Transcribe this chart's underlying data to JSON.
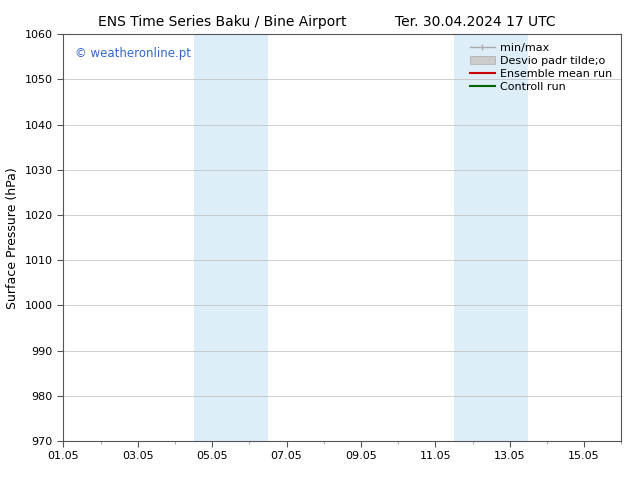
{
  "title_left": "ENS Time Series Baku / Bine Airport",
  "title_right": "Ter. 30.04.2024 17 UTC",
  "ylabel": "Surface Pressure (hPa)",
  "ylim": [
    970,
    1060
  ],
  "yticks": [
    970,
    980,
    990,
    1000,
    1010,
    1020,
    1030,
    1040,
    1050,
    1060
  ],
  "xtick_labels": [
    "01.05",
    "03.05",
    "05.05",
    "07.05",
    "09.05",
    "11.05",
    "13.05",
    "15.05"
  ],
  "xtick_positions": [
    0,
    2,
    4,
    6,
    8,
    10,
    12,
    14
  ],
  "xlim": [
    0,
    15
  ],
  "shaded_regions": [
    {
      "x_start": 3.5,
      "x_end": 5.5,
      "color": "#ddeef8"
    },
    {
      "x_start": 10.5,
      "x_end": 12.5,
      "color": "#ddeef8"
    }
  ],
  "watermark_text": "© weatheronline.pt",
  "watermark_color": "#3366cc",
  "legend_label_minmax": "min/max",
  "legend_label_desvio": "Desvio padr tilde;o",
  "legend_label_ensemble": "Ensemble mean run",
  "legend_label_control": "Controll run",
  "color_minmax": "#aaaaaa",
  "color_desvio": "#cccccc",
  "color_ensemble": "#cc0000",
  "color_control": "#006600",
  "bg_color": "#ffffff",
  "grid_color": "#bbbbbb",
  "title_fontsize": 10,
  "tick_fontsize": 8,
  "label_fontsize": 9,
  "legend_fontsize": 8
}
